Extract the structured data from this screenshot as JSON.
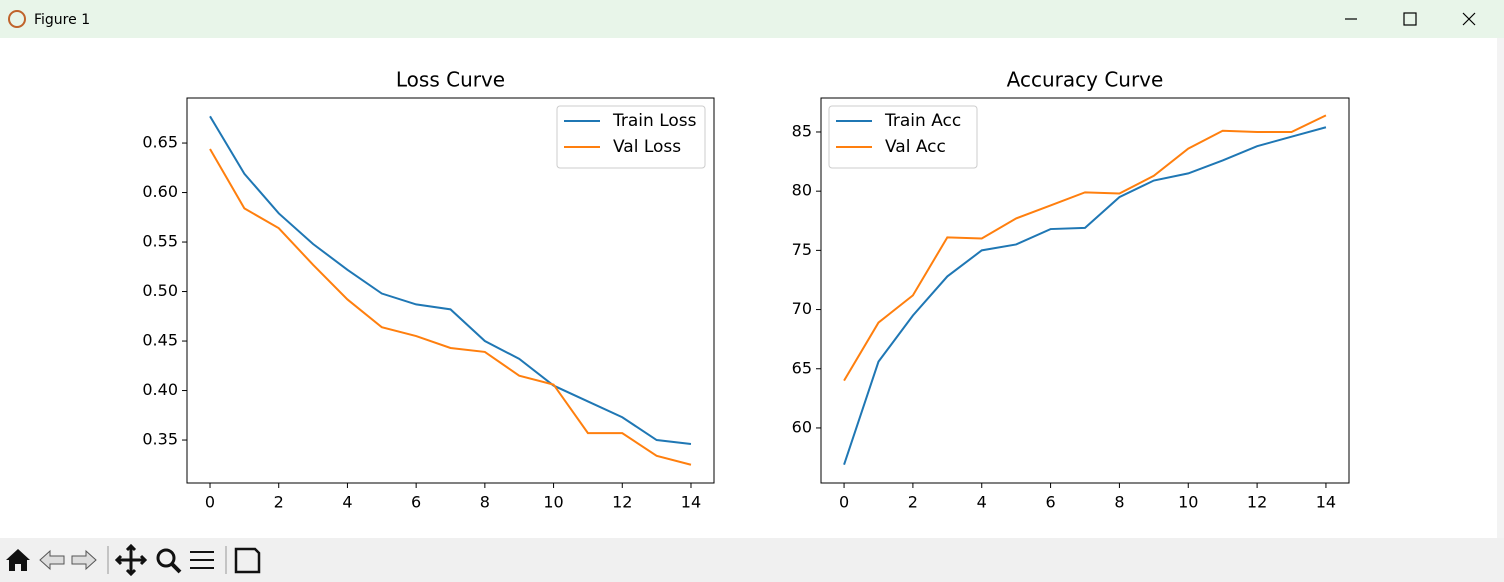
{
  "window": {
    "title": "Figure 1"
  },
  "chart_data": [
    {
      "type": "line",
      "title": "Loss Curve",
      "x": [
        0,
        1,
        2,
        3,
        4,
        5,
        6,
        7,
        8,
        9,
        10,
        11,
        12,
        13,
        14
      ],
      "series": [
        {
          "name": "Train Loss",
          "color": "#1f77b4",
          "values": [
            0.677,
            0.619,
            0.579,
            0.548,
            0.522,
            0.498,
            0.487,
            0.482,
            0.45,
            0.432,
            0.405,
            0.389,
            0.373,
            0.35,
            0.346
          ]
        },
        {
          "name": "Val Loss",
          "color": "#ff7f0e",
          "values": [
            0.644,
            0.584,
            0.564,
            0.527,
            0.492,
            0.464,
            0.455,
            0.443,
            0.439,
            0.415,
            0.406,
            0.357,
            0.357,
            0.334,
            0.325
          ]
        }
      ],
      "xlim": [
        -0.67,
        14.67
      ],
      "xticks": [
        0,
        2,
        4,
        6,
        8,
        10,
        12,
        14
      ],
      "ylim": [
        0.3066,
        0.6955
      ],
      "yticks": [
        0.35,
        {
          "value": 0.4,
          "label": "0.40"
        },
        0.45,
        {
          "value": 0.5,
          "label": "0.50"
        },
        0.55,
        {
          "value": 0.6,
          "label": "0.60"
        },
        0.65
      ],
      "legend": "upper right"
    },
    {
      "type": "line",
      "title": "Accuracy Curve",
      "x": [
        0,
        1,
        2,
        3,
        4,
        5,
        6,
        7,
        8,
        9,
        10,
        11,
        12,
        13,
        14
      ],
      "series": [
        {
          "name": "Train Acc",
          "color": "#1f77b4",
          "values": [
            56.9,
            65.6,
            69.5,
            72.8,
            75.0,
            75.5,
            76.8,
            76.9,
            79.5,
            80.9,
            81.5,
            82.6,
            83.8,
            84.6,
            85.4
          ]
        },
        {
          "name": "Val Acc",
          "color": "#ff7f0e",
          "values": [
            64.0,
            68.9,
            71.2,
            76.1,
            76.0,
            77.7,
            78.8,
            79.9,
            79.8,
            81.3,
            83.6,
            85.1,
            85.0,
            85.0,
            86.4
          ]
        }
      ],
      "xlim": [
        -0.67,
        14.67
      ],
      "xticks": [
        0,
        2,
        4,
        6,
        8,
        10,
        12,
        14
      ],
      "ylim": [
        55.35,
        87.87
      ],
      "yticks": [
        60,
        65,
        70,
        75,
        80,
        85
      ],
      "legend": "upper left"
    }
  ]
}
